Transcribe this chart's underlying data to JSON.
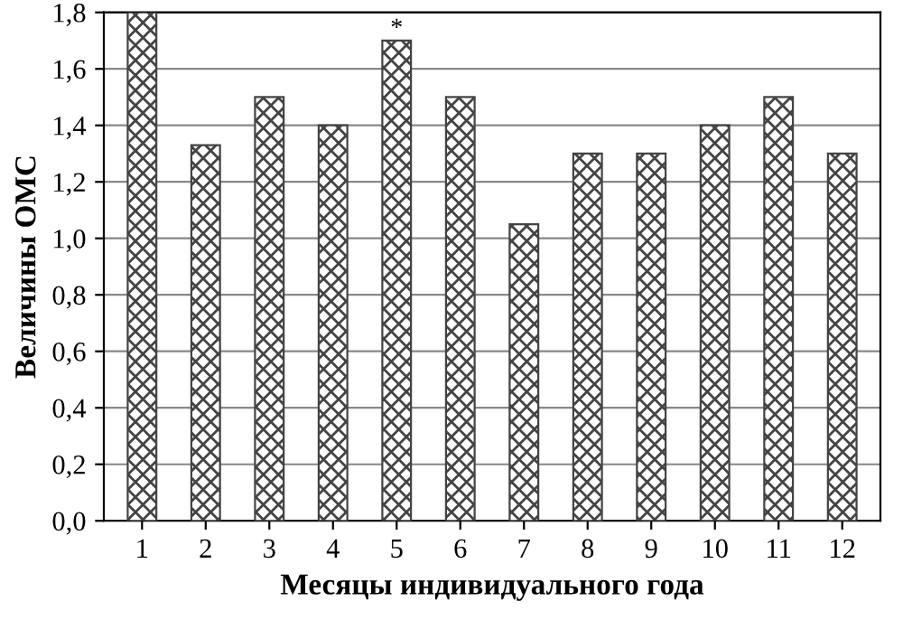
{
  "chart_data": {
    "type": "bar",
    "xlabel": "Месяцы индивидуального года",
    "ylabel": "Величины ОМС",
    "categories": [
      "1",
      "2",
      "3",
      "4",
      "5",
      "6",
      "7",
      "8",
      "9",
      "10",
      "11",
      "12"
    ],
    "values": [
      1.8,
      1.33,
      1.5,
      1.4,
      1.7,
      1.5,
      1.05,
      1.3,
      1.3,
      1.4,
      1.5,
      1.3
    ],
    "color": "#444444",
    "ylim": [
      0,
      1.8
    ],
    "yticks": [
      {
        "value": 0,
        "label": "0,0"
      },
      {
        "value": 0.2,
        "label": "0,2"
      },
      {
        "value": 0.4,
        "label": "0,4"
      },
      {
        "value": 0.6,
        "label": "0,6"
      },
      {
        "value": 0.8,
        "label": "0,8"
      },
      {
        "value": 1.0,
        "label": "1,0"
      },
      {
        "value": 1.2,
        "label": "1,2"
      },
      {
        "value": 1.4,
        "label": "1,4"
      },
      {
        "value": 1.6,
        "label": "1,6"
      },
      {
        "value": 1.8,
        "label": "1,8"
      }
    ],
    "grid": "y",
    "annotations": [
      {
        "text": "*",
        "x": "5",
        "y": 1.7
      }
    ]
  }
}
